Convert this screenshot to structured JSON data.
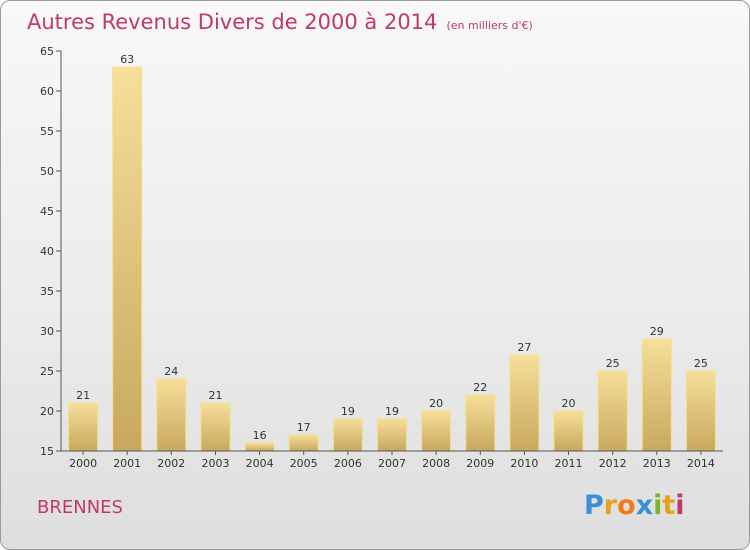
{
  "chart_data": {
    "type": "bar",
    "title": "Autres Revenus Divers de 2000 à 2014",
    "unit": "(en milliers d'€)",
    "categories": [
      "2000",
      "2001",
      "2002",
      "2003",
      "2004",
      "2005",
      "2006",
      "2007",
      "2008",
      "2009",
      "2010",
      "2011",
      "2012",
      "2013",
      "2014"
    ],
    "values": [
      21,
      63,
      24,
      21,
      16,
      17,
      19,
      19,
      20,
      22,
      27,
      20,
      25,
      29,
      25
    ],
    "ylim": [
      15,
      65
    ],
    "yticks": [
      15,
      20,
      25,
      30,
      35,
      40,
      45,
      50,
      55,
      60,
      65
    ],
    "grid": false,
    "colors": {
      "bar_light": "#f6df9a",
      "bar_dark": "#c8a85e",
      "title": "#c0396b"
    }
  },
  "footer": {
    "city": "BRENNES",
    "brand_letters": [
      "P",
      "r",
      "o",
      "x",
      "i",
      "t",
      "i"
    ]
  }
}
